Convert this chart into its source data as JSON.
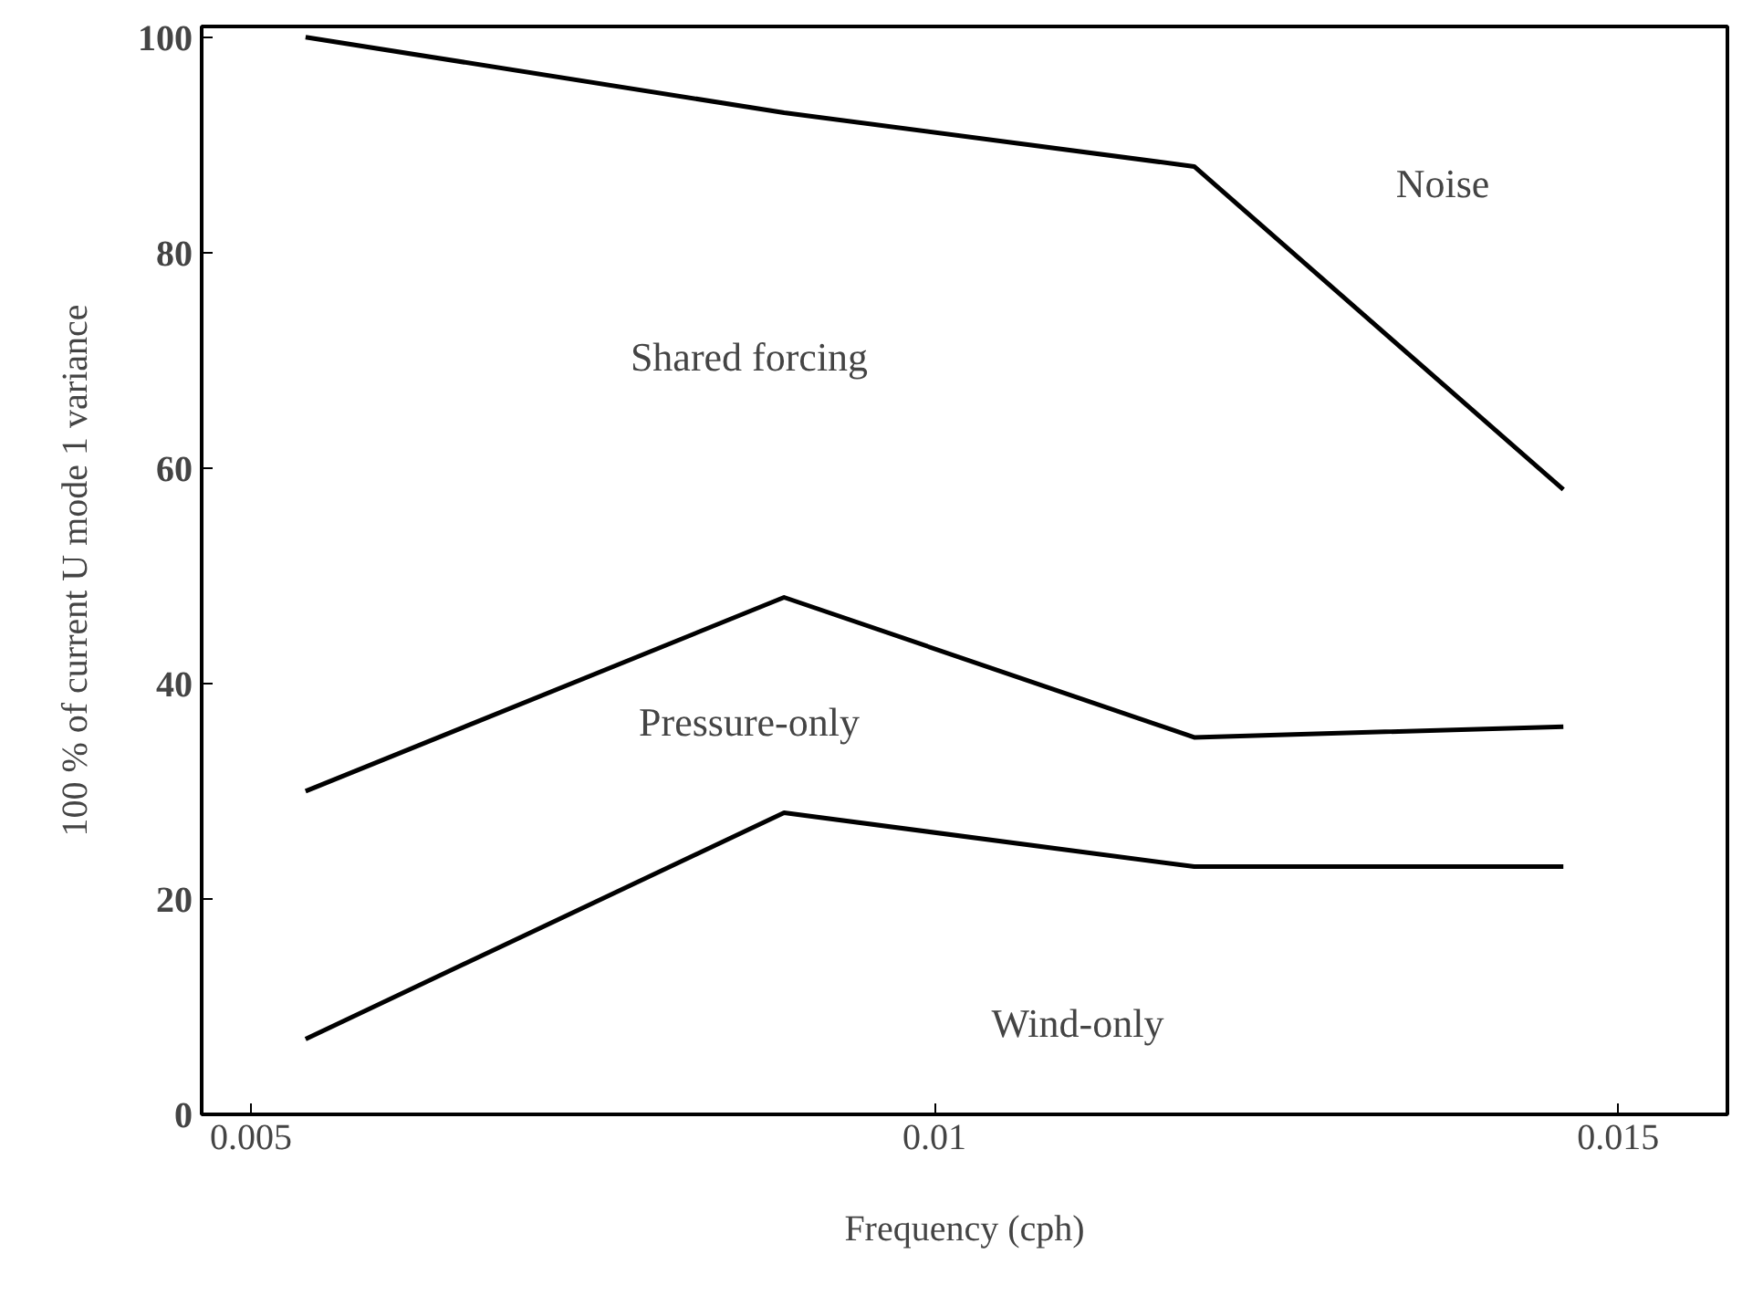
{
  "chart_data": {
    "type": "line",
    "xlabel": "Frequency (cph)",
    "ylabel": "100 % of current U mode 1 variance",
    "x": [
      0.0054,
      0.0089,
      0.0119,
      0.0146
    ],
    "series": [
      {
        "color": "#000000",
        "values": [
          100,
          93,
          88,
          58
        ]
      },
      {
        "color": "#000000",
        "values": [
          30,
          48,
          35,
          36
        ]
      },
      {
        "color": "#000000",
        "values": [
          7,
          28,
          23,
          23
        ]
      }
    ],
    "xlim": [
      0.00464,
      0.0158
    ],
    "ylim": [
      0,
      101
    ],
    "xticks": [
      0.005,
      0.01,
      0.015
    ],
    "yticks": [
      0,
      20,
      40,
      60,
      80,
      100
    ],
    "grid": false,
    "marker": "none",
    "line_style": "solid",
    "annotations": [
      "Shared forcing",
      "Noise",
      "Pressure-only",
      "Wind-only"
    ]
  }
}
